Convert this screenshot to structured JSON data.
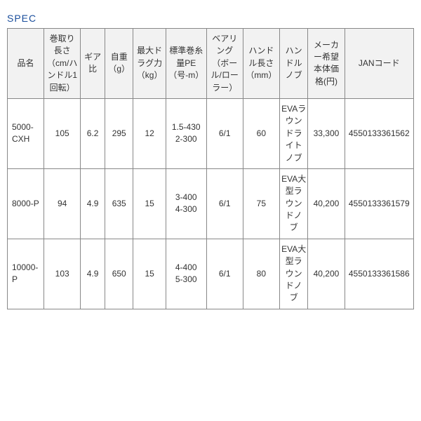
{
  "title": "SPEC",
  "title_color": "#1a4e9c",
  "columns": [
    {
      "key": "name",
      "label": "品名",
      "width": "9%"
    },
    {
      "key": "retrieve",
      "label": "巻取り長さ（cm/ハンドル1回転）",
      "width": "9%"
    },
    {
      "key": "gear",
      "label": "ギア比",
      "width": "6%"
    },
    {
      "key": "weight",
      "label": "自重（g）",
      "width": "7%"
    },
    {
      "key": "drag",
      "label": "最大ドラグ力（kg）",
      "width": "8%"
    },
    {
      "key": "line",
      "label": "標準巻糸量PE（号-m）",
      "width": "10%"
    },
    {
      "key": "bearing",
      "label": "ベアリング（ボール/ローラー）",
      "width": "9%"
    },
    {
      "key": "handle_len",
      "label": "ハンドル長さ（mm）",
      "width": "9%"
    },
    {
      "key": "knob",
      "label": "ハンドルノブ",
      "width": "7%"
    },
    {
      "key": "price",
      "label": "メーカー希望本体価格(円)",
      "width": "9%"
    },
    {
      "key": "jan",
      "label": "JANコード",
      "width": "17%"
    }
  ],
  "rows": [
    {
      "name": "5000-CXH",
      "retrieve": "105",
      "gear": "6.2",
      "weight": "295",
      "drag": "12",
      "line": "1.5-430\n2-300",
      "bearing": "6/1",
      "handle_len": "60",
      "knob": "EVAラウンドライトノブ",
      "price": "33,300",
      "jan": "4550133361562"
    },
    {
      "name": "8000-P",
      "retrieve": "94",
      "gear": "4.9",
      "weight": "635",
      "drag": "15",
      "line": "3-400\n4-300",
      "bearing": "6/1",
      "handle_len": "75",
      "knob": "EVA大型ラウンドノブ",
      "price": "40,200",
      "jan": "4550133361579"
    },
    {
      "name": "10000-P",
      "retrieve": "103",
      "gear": "4.9",
      "weight": "650",
      "drag": "15",
      "line": "4-400\n5-300",
      "bearing": "6/1",
      "handle_len": "80",
      "knob": "EVA大型ラウンドノブ",
      "price": "40,200",
      "jan": "4550133361586"
    }
  ]
}
